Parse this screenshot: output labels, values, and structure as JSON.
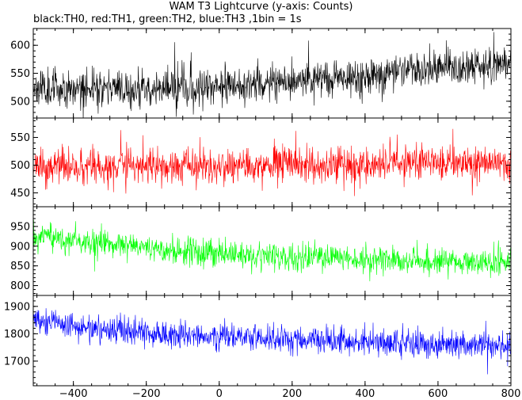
{
  "chart_data": {
    "type": "line",
    "title": "WAM T3 Lightcurve (y-axis: Counts)",
    "subtitle": "black:TH0, red:TH1, green:TH2, blue:TH3 ,1bin = 1s",
    "xlim": [
      -510,
      800
    ],
    "x_ticks": [
      -400,
      -200,
      0,
      200,
      400,
      600,
      800
    ],
    "x_tick_labels": [
      "−400",
      "−200",
      "0",
      "200",
      "400",
      "600",
      "800"
    ],
    "panels": [
      {
        "name": "TH0",
        "color": "#000000",
        "ylim": [
          470,
          630
        ],
        "y_ticks": [
          500,
          550,
          600
        ],
        "y_tick_labels": [
          "500",
          "550",
          "600"
        ],
        "trend": [
          [
            -510,
            525
          ],
          [
            -200,
            522
          ],
          [
            0,
            528
          ],
          [
            200,
            535
          ],
          [
            400,
            545
          ],
          [
            600,
            556
          ],
          [
            800,
            565
          ]
        ],
        "noise": 26,
        "seed": 11
      },
      {
        "name": "TH1",
        "color": "#ff0000",
        "ylim": [
          425,
          585
        ],
        "y_ticks": [
          450,
          500,
          550
        ],
        "y_tick_labels": [
          "450",
          "500",
          "550"
        ],
        "trend": [
          [
            -510,
            495
          ],
          [
            0,
            498
          ],
          [
            400,
            500
          ],
          [
            800,
            505
          ]
        ],
        "noise": 25,
        "seed": 23
      },
      {
        "name": "TH2",
        "color": "#00ff00",
        "ylim": [
          775,
          1000
        ],
        "y_ticks": [
          800,
          850,
          900,
          950
        ],
        "y_tick_labels": [
          "800",
          "850",
          "900",
          "950"
        ],
        "trend": [
          [
            -510,
            925
          ],
          [
            -300,
            905
          ],
          [
            -100,
            888
          ],
          [
            100,
            877
          ],
          [
            300,
            870
          ],
          [
            500,
            862
          ],
          [
            800,
            858
          ]
        ],
        "noise": 27,
        "seed": 37
      },
      {
        "name": "TH3",
        "color": "#0000ff",
        "ylim": [
          1610,
          1940
        ],
        "y_ticks": [
          1700,
          1800,
          1900
        ],
        "y_tick_labels": [
          "1700",
          "1800",
          "1900"
        ],
        "trend": [
          [
            -510,
            1855
          ],
          [
            -400,
            1825
          ],
          [
            -200,
            1805
          ],
          [
            0,
            1790
          ],
          [
            200,
            1778
          ],
          [
            400,
            1770
          ],
          [
            600,
            1762
          ],
          [
            800,
            1755
          ]
        ],
        "noise": 40,
        "seed": 53
      }
    ]
  }
}
